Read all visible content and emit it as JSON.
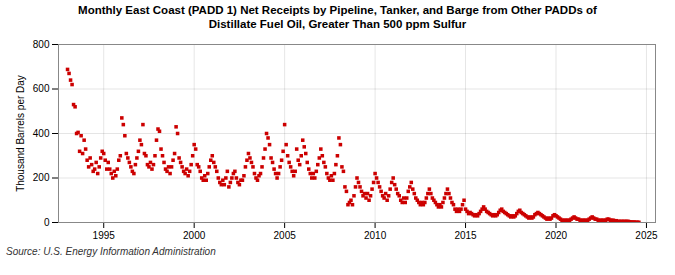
{
  "chart_data": {
    "type": "scatter",
    "title": "Monthly East Coast (PADD 1) Net Receipts by Pipeline, Tanker, and Barge from Other PADDs of\nDistillate Fuel Oil, Greater Than 500 ppm Sulfur",
    "ylabel": "Thousand Barrels per Day",
    "source": "Source: U.S. Energy Information Administration",
    "color": "#CC0000",
    "marker": "square",
    "grid": true,
    "xlim": [
      1992.5,
      2025.5
    ],
    "ylim": [
      0,
      800
    ],
    "xticks": [
      1995,
      2000,
      2005,
      2010,
      2015,
      2020,
      2025
    ],
    "yticks": [
      0,
      200,
      400,
      600,
      800
    ],
    "x": [
      1993.0,
      1993.083,
      1993.167,
      1993.25,
      1993.333,
      1993.417,
      1993.5,
      1993.583,
      1993.667,
      1993.75,
      1993.833,
      1993.917,
      1994.0,
      1994.083,
      1994.167,
      1994.25,
      1994.333,
      1994.417,
      1994.5,
      1994.583,
      1994.667,
      1994.75,
      1994.833,
      1994.917,
      1995.0,
      1995.083,
      1995.167,
      1995.25,
      1995.333,
      1995.417,
      1995.5,
      1995.583,
      1995.667,
      1995.75,
      1995.833,
      1995.917,
      1996.0,
      1996.083,
      1996.167,
      1996.25,
      1996.333,
      1996.417,
      1996.5,
      1996.583,
      1996.667,
      1996.75,
      1996.833,
      1996.917,
      1997.0,
      1997.083,
      1997.167,
      1997.25,
      1997.333,
      1997.417,
      1997.5,
      1997.583,
      1997.667,
      1997.75,
      1997.833,
      1997.917,
      1998.0,
      1998.083,
      1998.167,
      1998.25,
      1998.333,
      1998.417,
      1998.5,
      1998.583,
      1998.667,
      1998.75,
      1998.833,
      1998.917,
      1999.0,
      1999.083,
      1999.167,
      1999.25,
      1999.333,
      1999.417,
      1999.5,
      1999.583,
      1999.667,
      1999.75,
      1999.833,
      1999.917,
      2000.0,
      2000.083,
      2000.167,
      2000.25,
      2000.333,
      2000.417,
      2000.5,
      2000.583,
      2000.667,
      2000.75,
      2000.833,
      2000.917,
      2001.0,
      2001.083,
      2001.167,
      2001.25,
      2001.333,
      2001.417,
      2001.5,
      2001.583,
      2001.667,
      2001.75,
      2001.833,
      2001.917,
      2002.0,
      2002.083,
      2002.167,
      2002.25,
      2002.333,
      2002.417,
      2002.5,
      2002.583,
      2002.667,
      2002.75,
      2002.833,
      2002.917,
      2003.0,
      2003.083,
      2003.167,
      2003.25,
      2003.333,
      2003.417,
      2003.5,
      2003.583,
      2003.667,
      2003.75,
      2003.833,
      2003.917,
      2004.0,
      2004.083,
      2004.167,
      2004.25,
      2004.333,
      2004.417,
      2004.5,
      2004.583,
      2004.667,
      2004.75,
      2004.833,
      2004.917,
      2005.0,
      2005.083,
      2005.167,
      2005.25,
      2005.333,
      2005.417,
      2005.5,
      2005.583,
      2005.667,
      2005.75,
      2005.833,
      2005.917,
      2006.0,
      2006.083,
      2006.167,
      2006.25,
      2006.333,
      2006.417,
      2006.5,
      2006.583,
      2006.667,
      2006.75,
      2006.833,
      2006.917,
      2007.0,
      2007.083,
      2007.167,
      2007.25,
      2007.333,
      2007.417,
      2007.5,
      2007.583,
      2007.667,
      2007.75,
      2007.833,
      2007.917,
      2008.0,
      2008.083,
      2008.167,
      2008.25,
      2008.333,
      2008.417,
      2008.5,
      2008.583,
      2008.667,
      2008.75,
      2008.833,
      2008.917,
      2009.0,
      2009.083,
      2009.167,
      2009.25,
      2009.333,
      2009.417,
      2009.5,
      2009.583,
      2009.667,
      2009.75,
      2009.833,
      2009.917,
      2010.0,
      2010.083,
      2010.167,
      2010.25,
      2010.333,
      2010.417,
      2010.5,
      2010.583,
      2010.667,
      2010.75,
      2010.833,
      2010.917,
      2011.0,
      2011.083,
      2011.167,
      2011.25,
      2011.333,
      2011.417,
      2011.5,
      2011.583,
      2011.667,
      2011.75,
      2011.833,
      2011.917,
      2012.0,
      2012.083,
      2012.167,
      2012.25,
      2012.333,
      2012.417,
      2012.5,
      2012.583,
      2012.667,
      2012.75,
      2012.833,
      2012.917,
      2013.0,
      2013.083,
      2013.167,
      2013.25,
      2013.333,
      2013.417,
      2013.5,
      2013.583,
      2013.667,
      2013.75,
      2013.833,
      2013.917,
      2014.0,
      2014.083,
      2014.167,
      2014.25,
      2014.333,
      2014.417,
      2014.5,
      2014.583,
      2014.667,
      2014.75,
      2014.833,
      2014.917,
      2015.0,
      2015.083,
      2015.167,
      2015.25,
      2015.333,
      2015.417,
      2015.5,
      2015.583,
      2015.667,
      2015.75,
      2015.833,
      2015.917,
      2016.0,
      2016.083,
      2016.167,
      2016.25,
      2016.333,
      2016.417,
      2016.5,
      2016.583,
      2016.667,
      2016.75,
      2016.833,
      2016.917,
      2017.0,
      2017.083,
      2017.167,
      2017.25,
      2017.333,
      2017.417,
      2017.5,
      2017.583,
      2017.667,
      2017.75,
      2017.833,
      2017.917,
      2018.0,
      2018.083,
      2018.167,
      2018.25,
      2018.333,
      2018.417,
      2018.5,
      2018.583,
      2018.667,
      2018.75,
      2018.833,
      2018.917,
      2019.0,
      2019.083,
      2019.167,
      2019.25,
      2019.333,
      2019.417,
      2019.5,
      2019.583,
      2019.667,
      2019.75,
      2019.833,
      2019.917,
      2020.0,
      2020.083,
      2020.167,
      2020.25,
      2020.333,
      2020.417,
      2020.5,
      2020.583,
      2020.667,
      2020.75,
      2020.833,
      2020.917,
      2021.0,
      2021.083,
      2021.167,
      2021.25,
      2021.333,
      2021.417,
      2021.5,
      2021.583,
      2021.667,
      2021.75,
      2021.833,
      2021.917,
      2022.0,
      2022.083,
      2022.167,
      2022.25,
      2022.333,
      2022.417,
      2022.5,
      2022.583,
      2022.667,
      2022.75,
      2022.833,
      2022.917,
      2023.0,
      2023.083,
      2023.167,
      2023.25,
      2023.333,
      2023.417,
      2023.5,
      2023.583,
      2023.667,
      2023.75,
      2023.833,
      2023.917,
      2024.0,
      2024.083,
      2024.167,
      2024.25,
      2024.333,
      2024.417,
      2024.5,
      2024.583
    ],
    "values": [
      688,
      670,
      640,
      620,
      530,
      520,
      400,
      405,
      320,
      390,
      310,
      370,
      330,
      280,
      250,
      290,
      260,
      230,
      240,
      270,
      220,
      250,
      290,
      320,
      310,
      280,
      240,
      270,
      240,
      220,
      200,
      230,
      210,
      240,
      280,
      300,
      470,
      440,
      390,
      310,
      290,
      270,
      250,
      230,
      220,
      260,
      290,
      320,
      370,
      350,
      440,
      310,
      300,
      260,
      250,
      270,
      240,
      260,
      300,
      370,
      420,
      410,
      330,
      300,
      270,
      240,
      230,
      250,
      220,
      250,
      280,
      310,
      430,
      400,
      290,
      270,
      250,
      230,
      220,
      240,
      210,
      230,
      260,
      300,
      350,
      330,
      260,
      250,
      230,
      200,
      190,
      210,
      190,
      220,
      250,
      280,
      300,
      270,
      250,
      230,
      200,
      180,
      170,
      190,
      170,
      200,
      230,
      160,
      180,
      200,
      220,
      230,
      200,
      180,
      170,
      190,
      190,
      210,
      250,
      280,
      310,
      290,
      270,
      250,
      220,
      200,
      190,
      210,
      220,
      250,
      290,
      330,
      400,
      380,
      350,
      290,
      270,
      240,
      220,
      200,
      220,
      250,
      280,
      320,
      440,
      350,
      300,
      270,
      250,
      230,
      210,
      230,
      330,
      280,
      260,
      300,
      370,
      340,
      310,
      270,
      240,
      220,
      200,
      220,
      200,
      230,
      260,
      290,
      330,
      300,
      270,
      250,
      220,
      200,
      190,
      210,
      190,
      220,
      260,
      300,
      380,
      350,
      250,
      230,
      160,
      140,
      80,
      90,
      100,
      80,
      120,
      160,
      200,
      180,
      160,
      140,
      120,
      130,
      110,
      130,
      100,
      120,
      150,
      180,
      220,
      200,
      180,
      160,
      140,
      120,
      110,
      130,
      100,
      120,
      150,
      180,
      200,
      170,
      150,
      130,
      120,
      100,
      90,
      110,
      90,
      110,
      140,
      160,
      180,
      150,
      130,
      110,
      100,
      90,
      80,
      90,
      80,
      90,
      110,
      130,
      150,
      130,
      110,
      100,
      90,
      80,
      70,
      80,
      70,
      90,
      110,
      130,
      150,
      130,
      110,
      90,
      80,
      60,
      50,
      60,
      50,
      60,
      80,
      100,
      60,
      50,
      40,
      45,
      40,
      35,
      30,
      35,
      30,
      40,
      50,
      60,
      70,
      60,
      50,
      45,
      40,
      35,
      30,
      35,
      30,
      35,
      45,
      55,
      60,
      50,
      45,
      40,
      35,
      30,
      25,
      30,
      25,
      30,
      40,
      50,
      55,
      45,
      40,
      35,
      30,
      25,
      20,
      25,
      20,
      25,
      35,
      40,
      45,
      40,
      35,
      30,
      25,
      20,
      15,
      20,
      15,
      20,
      30,
      35,
      30,
      25,
      20,
      15,
      10,
      10,
      10,
      10,
      10,
      10,
      15,
      20,
      25,
      20,
      15,
      15,
      10,
      10,
      10,
      10,
      10,
      10,
      15,
      20,
      25,
      20,
      15,
      15,
      10,
      10,
      10,
      10,
      10,
      10,
      15,
      15,
      10,
      10,
      10,
      8,
      8,
      5,
      5,
      5,
      5,
      5,
      5,
      5,
      5,
      3,
      2,
      2,
      2,
      1,
      1,
      1
    ]
  }
}
